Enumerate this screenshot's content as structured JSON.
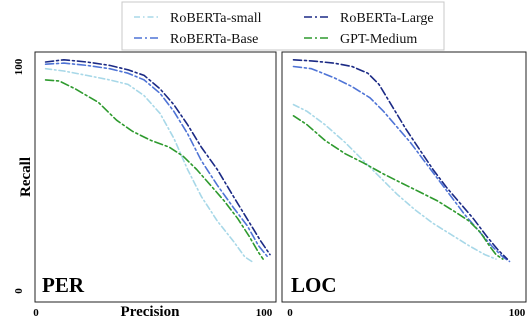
{
  "chart_data": [
    {
      "type": "line",
      "panel_label": "PER",
      "xlabel": "Precision",
      "ylabel": "Recall",
      "xlim": [
        0,
        100
      ],
      "ylim": [
        0,
        100
      ],
      "x_ticks": [
        "0",
        "100"
      ],
      "y_ticks": [
        "0",
        "100"
      ],
      "series": [
        {
          "name": "RoBERTa-small",
          "color": "#a8d8e8",
          "dash": "6,3,1.5,3",
          "points": [
            [
              2,
              97
            ],
            [
              10,
              96
            ],
            [
              20,
              94
            ],
            [
              30,
              92
            ],
            [
              38,
              90
            ],
            [
              45,
              85
            ],
            [
              52,
              77
            ],
            [
              58,
              66
            ],
            [
              64,
              52
            ],
            [
              70,
              40
            ],
            [
              77,
              29
            ],
            [
              84,
              20
            ],
            [
              89,
              13
            ],
            [
              92,
              11
            ]
          ]
        },
        {
          "name": "RoBERTa-Base",
          "color": "#4f74d6",
          "dash": "8,3,2,3",
          "points": [
            [
              2,
              99
            ],
            [
              10,
              99.5
            ],
            [
              20,
              98.5
            ],
            [
              30,
              97
            ],
            [
              38,
              95
            ],
            [
              45,
              92
            ],
            [
              52,
              86
            ],
            [
              58,
              78
            ],
            [
              64,
              68
            ],
            [
              70,
              56
            ],
            [
              77,
              45
            ],
            [
              84,
              35
            ],
            [
              90,
              27
            ],
            [
              95,
              18
            ],
            [
              99,
              13
            ]
          ]
        },
        {
          "name": "RoBERTa-Large",
          "color": "#1b2a85",
          "dash": "8,3,2,3",
          "points": [
            [
              2,
              100
            ],
            [
              10,
              101
            ],
            [
              20,
              100
            ],
            [
              30,
              98.5
            ],
            [
              38,
              96.5
            ],
            [
              45,
              94
            ],
            [
              52,
              88
            ],
            [
              58,
              81
            ],
            [
              64,
              72
            ],
            [
              70,
              62
            ],
            [
              77,
              52
            ],
            [
              84,
              40
            ],
            [
              90,
              30
            ],
            [
              96,
              20
            ],
            [
              100,
              14
            ]
          ]
        },
        {
          "name": "GPT-Medium",
          "color": "#2e9a2e",
          "dash": "8,3,2,3",
          "points": [
            [
              2,
              92
            ],
            [
              8,
              91.5
            ],
            [
              15,
              88
            ],
            [
              25,
              82
            ],
            [
              33,
              74
            ],
            [
              40,
              69
            ],
            [
              48,
              65
            ],
            [
              56,
              62
            ],
            [
              62,
              58
            ],
            [
              68,
              52
            ],
            [
              74,
              45
            ],
            [
              80,
              38
            ],
            [
              86,
              30
            ],
            [
              91,
              22
            ],
            [
              95,
              15
            ],
            [
              97,
              12
            ]
          ]
        }
      ]
    },
    {
      "type": "line",
      "panel_label": "LOC",
      "xlabel": "",
      "ylabel": "",
      "xlim": [
        0,
        100
      ],
      "ylim": [
        0,
        100
      ],
      "x_ticks": [
        "0",
        "100"
      ],
      "y_ticks": [],
      "series": [
        {
          "name": "RoBERTa-small",
          "color": "#a8d8e8",
          "dash": "6,3,1.5,3",
          "points": [
            [
              2,
              81
            ],
            [
              8,
              78
            ],
            [
              16,
              72
            ],
            [
              25,
              64
            ],
            [
              32,
              57
            ],
            [
              40,
              49
            ],
            [
              48,
              41
            ],
            [
              56,
              34
            ],
            [
              64,
              28
            ],
            [
              72,
              23
            ],
            [
              80,
              18
            ],
            [
              87,
              14
            ],
            [
              92,
              12
            ]
          ]
        },
        {
          "name": "RoBERTa-Base",
          "color": "#4f74d6",
          "dash": "8,3,2,3",
          "points": [
            [
              2,
              98
            ],
            [
              10,
              97
            ],
            [
              20,
              93
            ],
            [
              28,
              89
            ],
            [
              36,
              84
            ],
            [
              42,
              78
            ],
            [
              48,
              71
            ],
            [
              54,
              64
            ],
            [
              60,
              56
            ],
            [
              66,
              48
            ],
            [
              72,
              40
            ],
            [
              78,
              32
            ],
            [
              84,
              25
            ],
            [
              90,
              18
            ],
            [
              95,
              13
            ],
            [
              98,
              11
            ]
          ]
        },
        {
          "name": "RoBERTa-Large",
          "color": "#1b2a85",
          "dash": "8,3,2,3",
          "points": [
            [
              2,
              101
            ],
            [
              10,
              100.5
            ],
            [
              20,
              99.5
            ],
            [
              28,
              98
            ],
            [
              35,
              95
            ],
            [
              40,
              90
            ],
            [
              46,
              80
            ],
            [
              52,
              70
            ],
            [
              58,
              61
            ],
            [
              64,
              52
            ],
            [
              70,
              44
            ],
            [
              76,
              37
            ],
            [
              82,
              30
            ],
            [
              88,
              22
            ],
            [
              93,
              16
            ],
            [
              97,
              12
            ]
          ]
        },
        {
          "name": "GPT-Medium",
          "color": "#2e9a2e",
          "dash": "8,3,2,3",
          "points": [
            [
              2,
              76
            ],
            [
              8,
              72
            ],
            [
              16,
              65
            ],
            [
              25,
              59
            ],
            [
              33,
              55
            ],
            [
              42,
              50
            ],
            [
              50,
              46
            ],
            [
              58,
              42
            ],
            [
              66,
              38
            ],
            [
              74,
              33
            ],
            [
              80,
              29
            ],
            [
              85,
              24
            ],
            [
              89,
              18
            ],
            [
              92,
              14
            ],
            [
              95,
              12
            ]
          ]
        }
      ]
    }
  ]
}
